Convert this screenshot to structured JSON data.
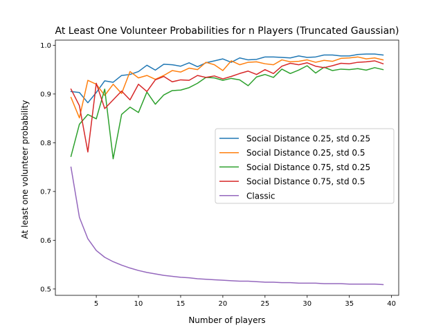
{
  "chart_data": {
    "type": "line",
    "title": "At Least One Volunteer Probabilities for n Players (Truncated Gaussian)",
    "xlabel": "Number of players",
    "ylabel": "At least one volunteer probability",
    "xlim": [
      0.15,
      40.85
    ],
    "ylim": [
      0.487,
      1.0105
    ],
    "x_ticks": [
      5,
      10,
      15,
      20,
      25,
      30,
      35,
      40
    ],
    "x_tick_labels": [
      "5",
      "10",
      "15",
      "20",
      "25",
      "30",
      "35",
      "40"
    ],
    "y_ticks": [
      0.5,
      0.6,
      0.7,
      0.8,
      0.9,
      1.0
    ],
    "y_tick_labels": [
      "0.5",
      "0.6",
      "0.7",
      "0.8",
      "0.9",
      "1.0"
    ],
    "grid": false,
    "legend_position": "center-right",
    "x": [
      2,
      3,
      4,
      5,
      6,
      7,
      8,
      9,
      10,
      11,
      12,
      13,
      14,
      15,
      16,
      17,
      18,
      19,
      20,
      21,
      22,
      23,
      24,
      25,
      26,
      27,
      28,
      29,
      30,
      31,
      32,
      33,
      34,
      35,
      36,
      37,
      38,
      39
    ],
    "series": [
      {
        "name": "Social Distance 0.25, std 0.25",
        "color": "#1f77b4",
        "values": [
          0.905,
          0.903,
          0.882,
          0.903,
          0.927,
          0.924,
          0.938,
          0.94,
          0.946,
          0.959,
          0.949,
          0.961,
          0.96,
          0.957,
          0.964,
          0.956,
          0.964,
          0.968,
          0.972,
          0.965,
          0.974,
          0.97,
          0.971,
          0.976,
          0.976,
          0.975,
          0.974,
          0.978,
          0.975,
          0.976,
          0.98,
          0.98,
          0.978,
          0.978,
          0.981,
          0.982,
          0.982,
          0.98
        ]
      },
      {
        "name": "Social Distance 0.25, std 0.5",
        "color": "#ff7f0e",
        "values": [
          0.893,
          0.851,
          0.928,
          0.92,
          0.897,
          0.92,
          0.901,
          0.946,
          0.933,
          0.938,
          0.93,
          0.938,
          0.948,
          0.945,
          0.953,
          0.95,
          0.965,
          0.96,
          0.948,
          0.968,
          0.96,
          0.965,
          0.966,
          0.962,
          0.96,
          0.97,
          0.966,
          0.967,
          0.97,
          0.965,
          0.969,
          0.967,
          0.973,
          0.974,
          0.976,
          0.972,
          0.974,
          0.97
        ]
      },
      {
        "name": "Social Distance 0.75, std 0.25",
        "color": "#2ca02c",
        "values": [
          0.772,
          0.838,
          0.858,
          0.849,
          0.91,
          0.767,
          0.858,
          0.873,
          0.862,
          0.904,
          0.879,
          0.898,
          0.907,
          0.908,
          0.913,
          0.922,
          0.934,
          0.933,
          0.928,
          0.932,
          0.929,
          0.917,
          0.935,
          0.94,
          0.934,
          0.951,
          0.942,
          0.949,
          0.958,
          0.943,
          0.955,
          0.948,
          0.951,
          0.95,
          0.952,
          0.949,
          0.954,
          0.95
        ]
      },
      {
        "name": "Social Distance 0.75, std 0.5",
        "color": "#d62728",
        "values": [
          0.91,
          0.876,
          0.781,
          0.922,
          0.87,
          0.888,
          0.906,
          0.888,
          0.92,
          0.905,
          0.929,
          0.936,
          0.925,
          0.929,
          0.928,
          0.938,
          0.934,
          0.937,
          0.931,
          0.936,
          0.942,
          0.947,
          0.94,
          0.95,
          0.942,
          0.957,
          0.963,
          0.96,
          0.964,
          0.957,
          0.954,
          0.958,
          0.963,
          0.962,
          0.965,
          0.966,
          0.968,
          0.962
        ]
      },
      {
        "name": "Classic",
        "color": "#9467bd",
        "values": [
          0.75,
          0.647,
          0.603,
          0.579,
          0.565,
          0.556,
          0.549,
          0.543,
          0.538,
          0.534,
          0.531,
          0.528,
          0.526,
          0.524,
          0.523,
          0.521,
          0.52,
          0.519,
          0.518,
          0.517,
          0.516,
          0.516,
          0.515,
          0.514,
          0.514,
          0.513,
          0.513,
          0.512,
          0.512,
          0.512,
          0.511,
          0.511,
          0.511,
          0.51,
          0.51,
          0.51,
          0.51,
          0.509
        ]
      }
    ]
  }
}
